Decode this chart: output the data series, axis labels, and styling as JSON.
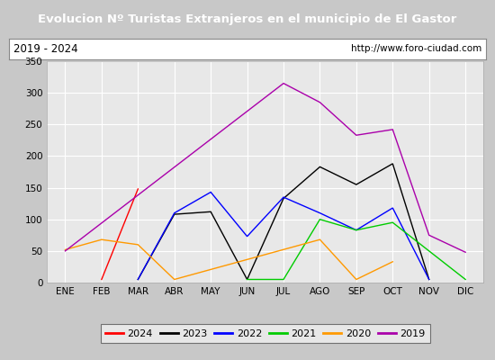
{
  "title": "Evolucion Nº Turistas Extranjeros en el municipio de El Gastor",
  "subtitle_left": "2019 - 2024",
  "subtitle_right": "http://www.foro-ciudad.com",
  "months": [
    "ENE",
    "FEB",
    "MAR",
    "ABR",
    "MAY",
    "JUN",
    "JUL",
    "AGO",
    "SEP",
    "OCT",
    "NOV",
    "DIC"
  ],
  "series": {
    "2024": {
      "color": "#ff0000",
      "data": [
        null,
        5,
        148,
        null,
        null,
        null,
        null,
        null,
        null,
        null,
        null,
        null
      ]
    },
    "2023": {
      "color": "#000000",
      "data": [
        null,
        null,
        5,
        108,
        112,
        5,
        133,
        183,
        155,
        188,
        5,
        null
      ]
    },
    "2022": {
      "color": "#0000ff",
      "data": [
        null,
        null,
        5,
        110,
        143,
        73,
        135,
        110,
        83,
        118,
        5,
        null
      ]
    },
    "2021": {
      "color": "#00cc00",
      "data": [
        null,
        null,
        null,
        null,
        null,
        5,
        5,
        100,
        83,
        95,
        50,
        5
      ]
    },
    "2020": {
      "color": "#ff9900",
      "data": [
        52,
        68,
        60,
        5,
        null,
        null,
        null,
        68,
        5,
        33,
        null,
        null
      ]
    },
    "2019": {
      "color": "#aa00aa",
      "data": [
        50,
        null,
        null,
        null,
        null,
        null,
        315,
        285,
        233,
        242,
        75,
        48
      ]
    }
  },
  "ylim": [
    0,
    350
  ],
  "yticks": [
    0,
    50,
    100,
    150,
    200,
    250,
    300,
    350
  ],
  "title_bg": "#4c7fbe",
  "title_color": "#ffffff",
  "title_fontsize": 9.5,
  "plot_bg": "#e8e8e8",
  "grid_color": "#ffffff",
  "outer_bg": "#c8c8c8",
  "legend_order": [
    "2024",
    "2023",
    "2022",
    "2021",
    "2020",
    "2019"
  ]
}
